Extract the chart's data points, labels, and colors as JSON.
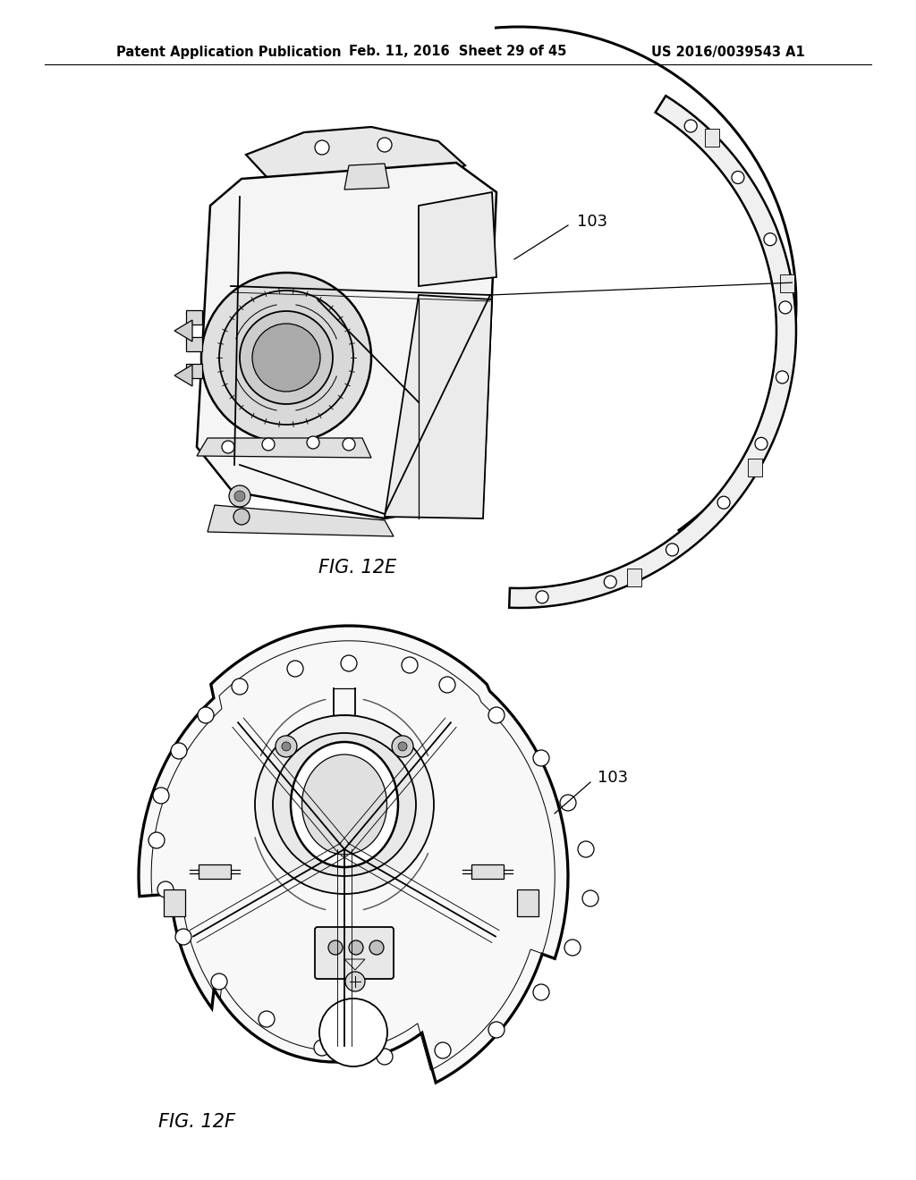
{
  "background_color": "#ffffff",
  "header_left": "Patent Application Publication",
  "header_center": "Feb. 11, 2016  Sheet 29 of 45",
  "header_right": "US 2016/0039543 A1",
  "header_fontsize": 10.5,
  "fig12e_label": "FIG. 12E",
  "fig12f_label": "FIG. 12F",
  "label_fontsize": 15,
  "ref_fontsize": 13,
  "line_color": "#000000",
  "lw_main": 1.8,
  "lw_thin": 0.9,
  "lw_med": 1.3
}
